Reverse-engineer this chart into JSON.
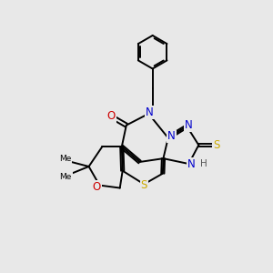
{
  "background_color": "#e8e8e8",
  "figsize": [
    3.0,
    3.0
  ],
  "dpi": 100,
  "bond_color": "#000000",
  "bond_width": 1.4,
  "atom_colors": {
    "N": "#0000cc",
    "O": "#cc0000",
    "S": "#ccaa00",
    "C": "#000000",
    "H": "#555555"
  },
  "font_size": 8.5
}
